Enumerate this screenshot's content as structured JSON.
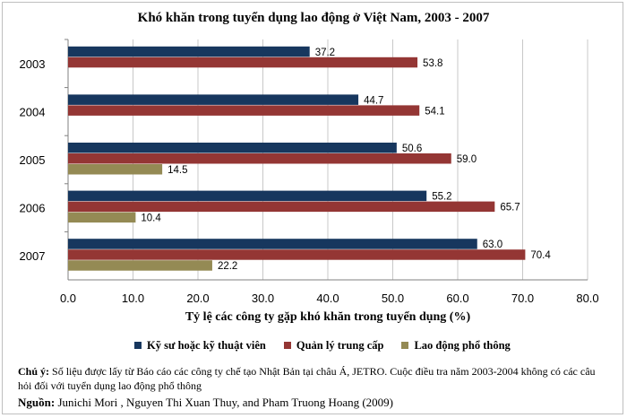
{
  "chart_data": {
    "type": "bar",
    "orientation": "horizontal",
    "title": "Khó khăn trong tuyển dụng lao động ở Việt Nam, 2003 - 2007",
    "xlabel": "Tỷ lệ các công ty gặp khó khăn trong tuyển dụng (%)",
    "categories": [
      "2003",
      "2004",
      "2005",
      "2006",
      "2007"
    ],
    "series": [
      {
        "name": "Kỹ sư hoặc kỹ thuật viên",
        "color": "#17375e",
        "values": [
          37.2,
          44.7,
          50.6,
          55.2,
          63.0
        ]
      },
      {
        "name": "Quản lý trung cấp",
        "color": "#943634",
        "values": [
          53.8,
          54.1,
          59.0,
          65.7,
          70.4
        ]
      },
      {
        "name": "Lao động phổ thông",
        "color": "#948a54",
        "values": [
          null,
          null,
          14.5,
          10.4,
          22.2
        ]
      }
    ],
    "xlim": [
      0,
      80
    ],
    "xticks": [
      "0.0",
      "10.0",
      "20.0",
      "30.0",
      "40.0",
      "50.0",
      "60.0",
      "70.0",
      "80.0"
    ],
    "grid": true,
    "legend_position": "bottom"
  },
  "note": {
    "label": "Chú ý:",
    "text": " Số liệu được lấy từ Báo cáo các công ty chế tạo Nhật Bản tại châu Á, JETRO. Cuộc điều tra năm 2003-2004 không có các câu hỏi đối với tuyển dụng lao động phổ thông"
  },
  "source": {
    "label": "Nguồn:",
    "text": " Junichi Mori , Nguyen Thi Xuan Thuy, and Pham Truong Hoang  (2009)"
  }
}
